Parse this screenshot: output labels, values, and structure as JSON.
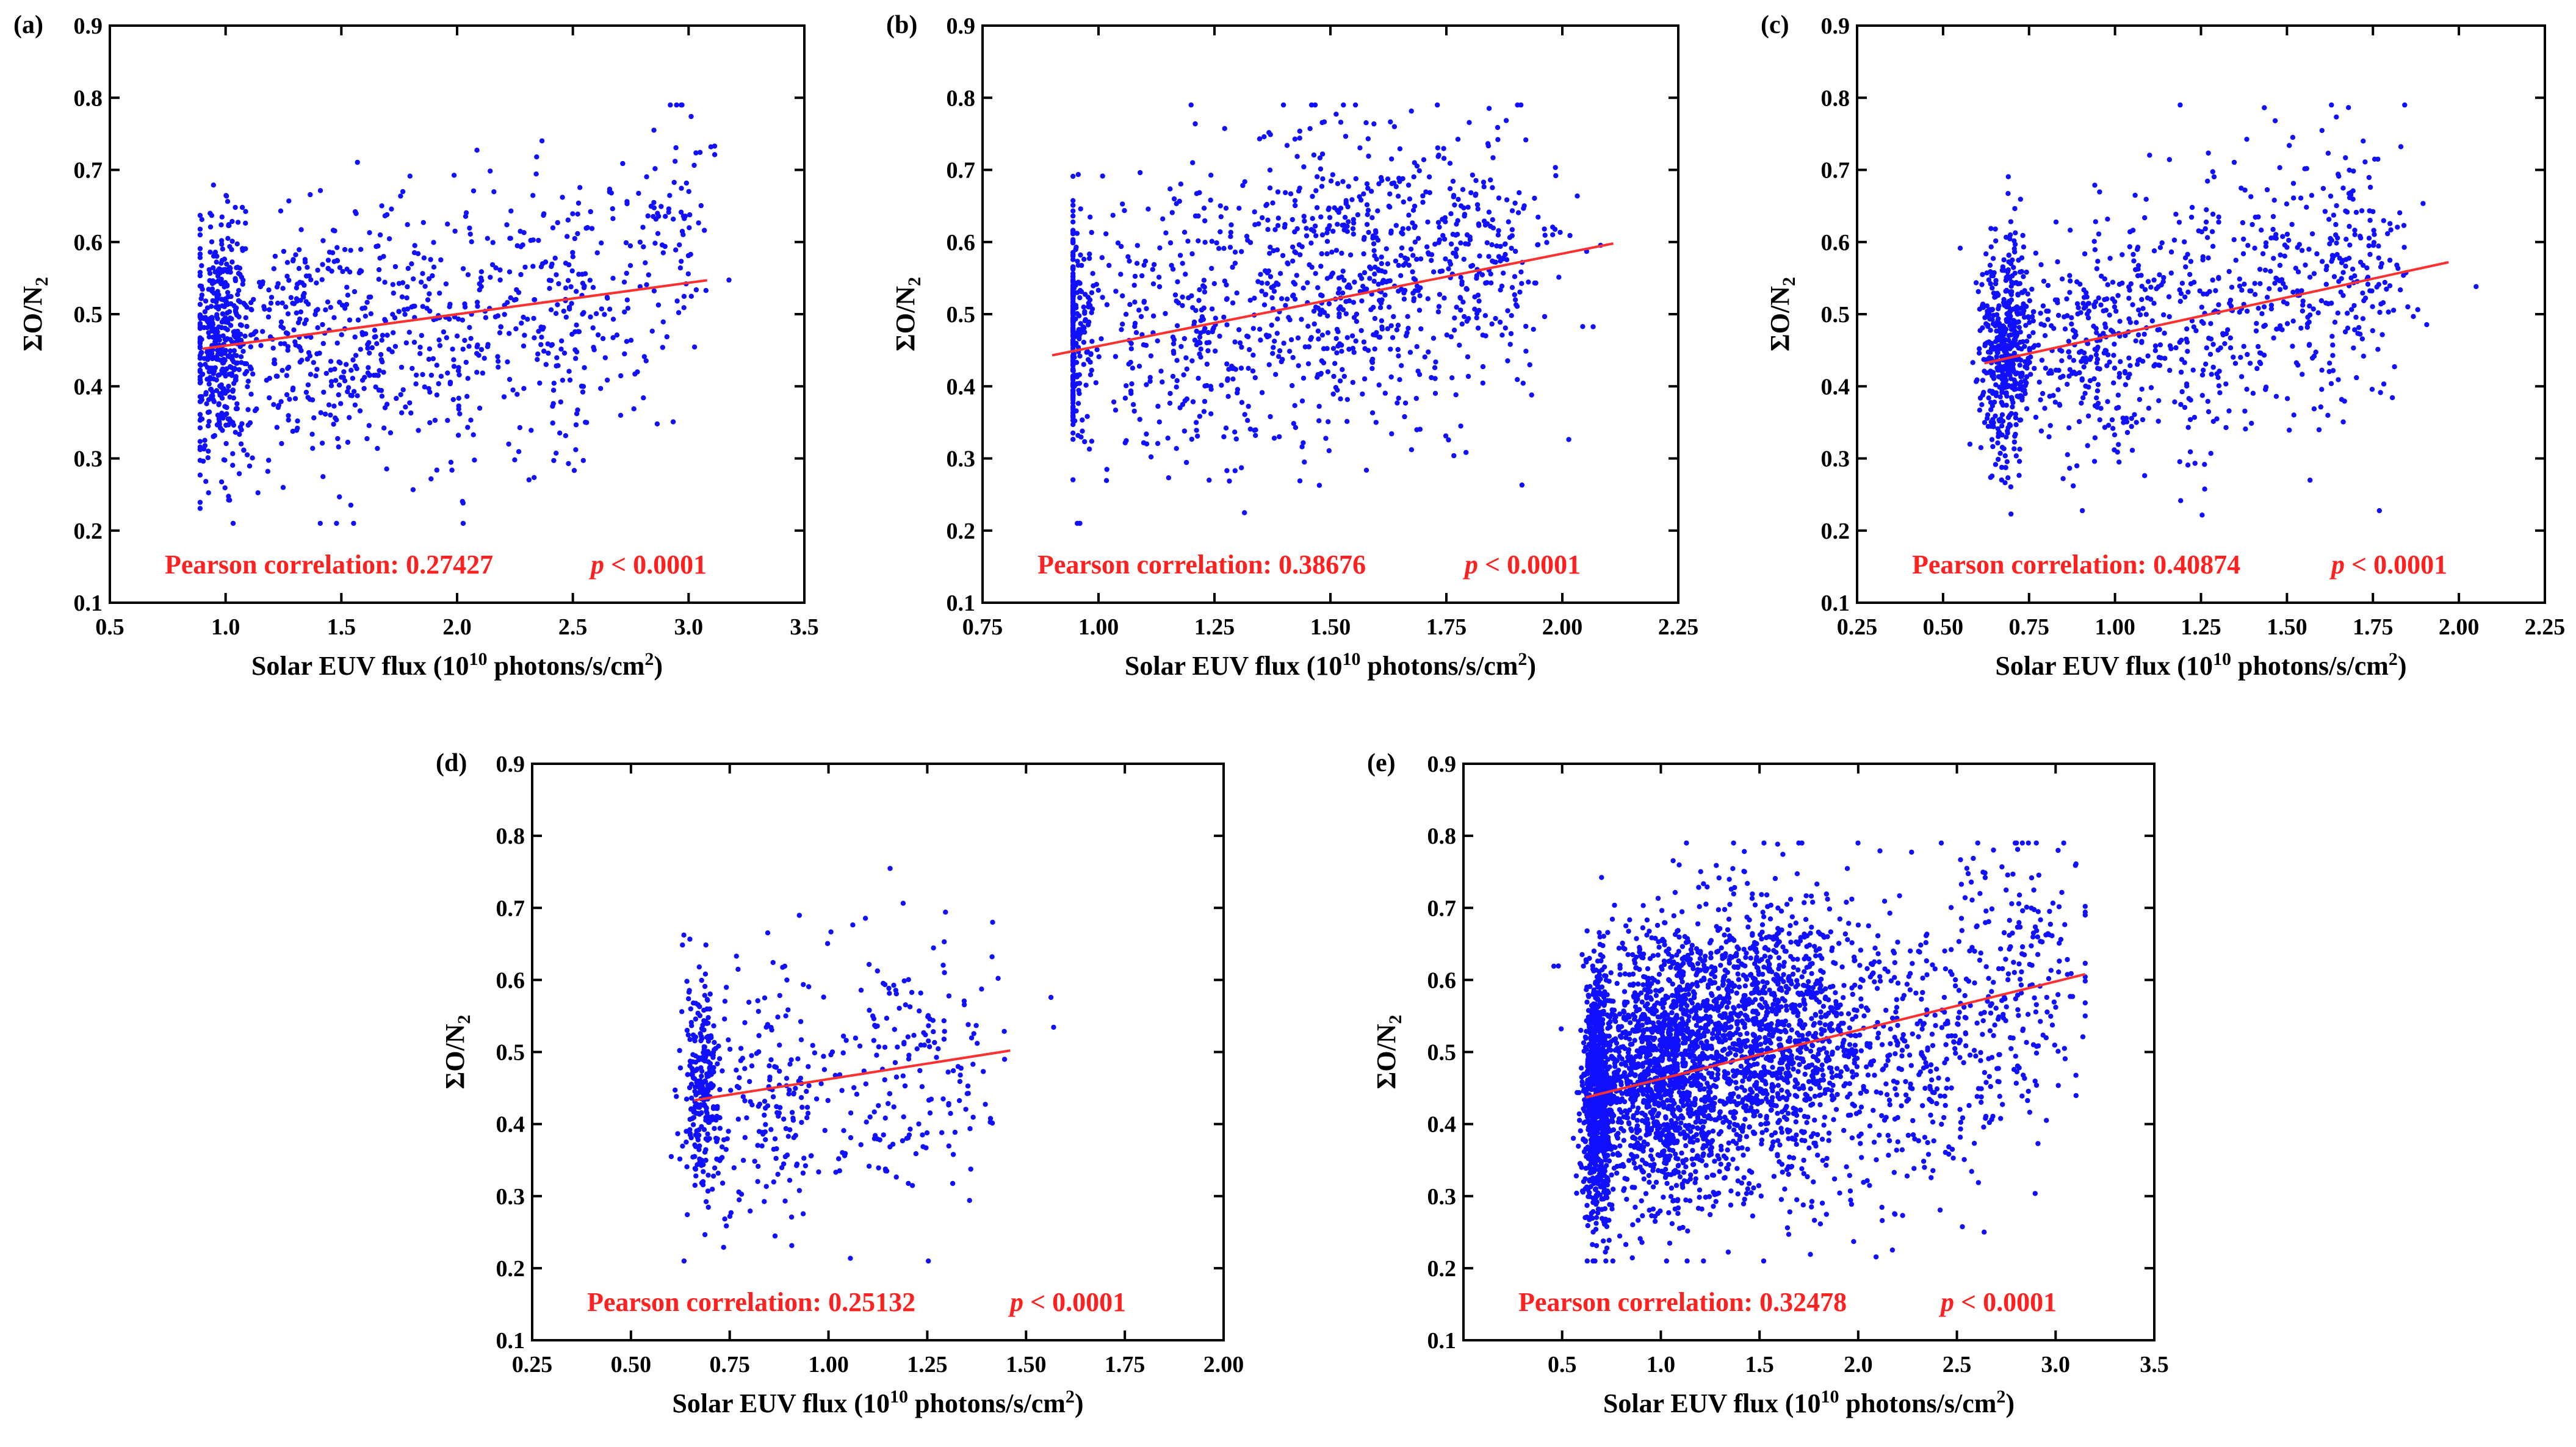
{
  "figure": {
    "xlabel_prefix": "Solar EUV flux (10",
    "xlabel_exp": "10",
    "xlabel_mid": " photons/s/cm",
    "xlabel_sup2": "2",
    "xlabel_suffix": ")",
    "ylabel_main": "ΣO/N",
    "ylabel_sub": "2"
  },
  "chart_data": [
    {
      "type": "scatter",
      "panel_label": "(a)",
      "xlabel": "Solar EUV flux (10^10 photons/s/cm^2)",
      "ylabel": "ΣO/N2",
      "xlim": [
        0.5,
        3.5
      ],
      "ylim": [
        0.1,
        0.9
      ],
      "xticks": [
        "0.5",
        "1.0",
        "1.5",
        "2.0",
        "2.5",
        "3.0",
        "3.5"
      ],
      "yticks": [
        "0.1",
        "0.2",
        "0.3",
        "0.4",
        "0.5",
        "0.6",
        "0.7",
        "0.8",
        "0.9"
      ],
      "fit_line": {
        "x": [
          0.9,
          3.08
        ],
        "y": [
          0.452,
          0.547
        ]
      },
      "annotation_label": "Pearson correlation: 0.27427",
      "p_label": "p",
      "p_value": "< 0.0001",
      "point_clusters": [
        {
          "cx": 0.98,
          "cy": 0.46,
          "sx": 0.06,
          "sy": 0.08,
          "n": 400
        },
        {
          "cx": 1.4,
          "cy": 0.47,
          "sx": 0.3,
          "sy": 0.09,
          "n": 450
        },
        {
          "cx": 2.1,
          "cy": 0.48,
          "sx": 0.25,
          "sy": 0.1,
          "n": 200
        },
        {
          "cx": 2.5,
          "cy": 0.5,
          "sx": 0.15,
          "sy": 0.1,
          "n": 150
        },
        {
          "cx": 2.9,
          "cy": 0.64,
          "sx": 0.12,
          "sy": 0.09,
          "n": 90
        }
      ]
    },
    {
      "type": "scatter",
      "panel_label": "(b)",
      "xlabel": "Solar EUV flux (10^10 photons/s/cm^2)",
      "ylabel": "ΣO/N2",
      "xlim": [
        0.75,
        2.25
      ],
      "ylim": [
        0.1,
        0.9
      ],
      "xticks": [
        "0.75",
        "1.00",
        "1.25",
        "1.50",
        "1.75",
        "2.00",
        "2.25"
      ],
      "yticks": [
        "0.1",
        "0.2",
        "0.3",
        "0.4",
        "0.5",
        "0.6",
        "0.7",
        "0.8",
        "0.9"
      ],
      "fit_line": {
        "x": [
          0.9,
          2.11
        ],
        "y": [
          0.443,
          0.598
        ]
      },
      "annotation_label": "Pearson correlation: 0.38676",
      "p_label": "p",
      "p_value": "< 0.0001",
      "point_clusters": [
        {
          "cx": 0.94,
          "cy": 0.48,
          "sx": 0.025,
          "sy": 0.08,
          "n": 250
        },
        {
          "cx": 1.2,
          "cy": 0.47,
          "sx": 0.15,
          "sy": 0.1,
          "n": 350
        },
        {
          "cx": 1.55,
          "cy": 0.55,
          "sx": 0.15,
          "sy": 0.1,
          "n": 550
        },
        {
          "cx": 1.85,
          "cy": 0.6,
          "sx": 0.08,
          "sy": 0.1,
          "n": 180
        }
      ]
    },
    {
      "type": "scatter",
      "panel_label": "(c)",
      "xlabel": "Solar EUV flux (10^10 photons/s/cm^2)",
      "ylabel": "ΣO/N2",
      "xlim": [
        0.25,
        2.25
      ],
      "ylim": [
        0.1,
        0.9
      ],
      "xticks": [
        "0.25",
        "0.50",
        "0.75",
        "1.00",
        "1.25",
        "1.50",
        "1.75",
        "2.00",
        "2.25"
      ],
      "yticks": [
        "0.1",
        "0.2",
        "0.3",
        "0.4",
        "0.5",
        "0.6",
        "0.7",
        "0.8",
        "0.9"
      ],
      "fit_line": {
        "x": [
          0.62,
          1.97
        ],
        "y": [
          0.432,
          0.572
        ]
      },
      "annotation_label": "Pearson correlation: 0.40874",
      "p_label": "p",
      "p_value": "< 0.0001",
      "point_clusters": [
        {
          "cx": 0.68,
          "cy": 0.45,
          "sx": 0.04,
          "sy": 0.08,
          "n": 500
        },
        {
          "cx": 0.95,
          "cy": 0.46,
          "sx": 0.12,
          "sy": 0.08,
          "n": 300
        },
        {
          "cx": 1.3,
          "cy": 0.5,
          "sx": 0.15,
          "sy": 0.1,
          "n": 250
        },
        {
          "cx": 1.65,
          "cy": 0.56,
          "sx": 0.12,
          "sy": 0.1,
          "n": 250
        }
      ]
    },
    {
      "type": "scatter",
      "panel_label": "(d)",
      "xlabel": "Solar EUV flux (10^10 photons/s/cm^2)",
      "ylabel": "ΣO/N2",
      "xlim": [
        0.25,
        2.0
      ],
      "ylim": [
        0.1,
        0.9
      ],
      "xticks": [
        "0.25",
        "0.50",
        "0.75",
        "1.00",
        "1.25",
        "1.50",
        "1.75",
        "2.00"
      ],
      "yticks": [
        "0.1",
        "0.2",
        "0.3",
        "0.4",
        "0.5",
        "0.6",
        "0.7",
        "0.8",
        "0.9"
      ],
      "fit_line": {
        "x": [
          0.66,
          1.46
        ],
        "y": [
          0.433,
          0.502
        ]
      },
      "annotation_label": "Pearson correlation: 0.25132",
      "p_label": "p",
      "p_value": "< 0.0001",
      "point_clusters": [
        {
          "cx": 0.68,
          "cy": 0.45,
          "sx": 0.025,
          "sy": 0.08,
          "n": 250
        },
        {
          "cx": 0.85,
          "cy": 0.43,
          "sx": 0.1,
          "sy": 0.09,
          "n": 200
        },
        {
          "cx": 1.2,
          "cy": 0.48,
          "sx": 0.12,
          "sy": 0.1,
          "n": 180
        }
      ]
    },
    {
      "type": "scatter",
      "panel_label": "(e)",
      "xlabel": "Solar EUV flux (10^10 photons/s/cm^2)",
      "ylabel": "ΣO/N2",
      "xlim": [
        0.0,
        3.5
      ],
      "ylim": [
        0.1,
        0.9
      ],
      "xticks": [
        "0.5",
        "1.0",
        "1.5",
        "2.0",
        "2.5",
        "3.0",
        "3.5"
      ],
      "yticks": [
        "0.1",
        "0.2",
        "0.3",
        "0.4",
        "0.5",
        "0.6",
        "0.7",
        "0.8",
        "0.9"
      ],
      "fit_line": {
        "x": [
          0.62,
          3.15
        ],
        "y": [
          0.437,
          0.608
        ]
      },
      "annotation_label": "Pearson correlation: 0.32478",
      "p_label": "p",
      "p_value": "< 0.0001",
      "point_clusters": [
        {
          "cx": 0.68,
          "cy": 0.44,
          "sx": 0.04,
          "sy": 0.09,
          "n": 900
        },
        {
          "cx": 1.0,
          "cy": 0.47,
          "sx": 0.15,
          "sy": 0.09,
          "n": 1300
        },
        {
          "cx": 1.5,
          "cy": 0.52,
          "sx": 0.25,
          "sy": 0.1,
          "n": 1400
        },
        {
          "cx": 2.2,
          "cy": 0.5,
          "sx": 0.3,
          "sy": 0.1,
          "n": 400
        },
        {
          "cx": 2.8,
          "cy": 0.6,
          "sx": 0.2,
          "sy": 0.1,
          "n": 200
        }
      ]
    }
  ]
}
